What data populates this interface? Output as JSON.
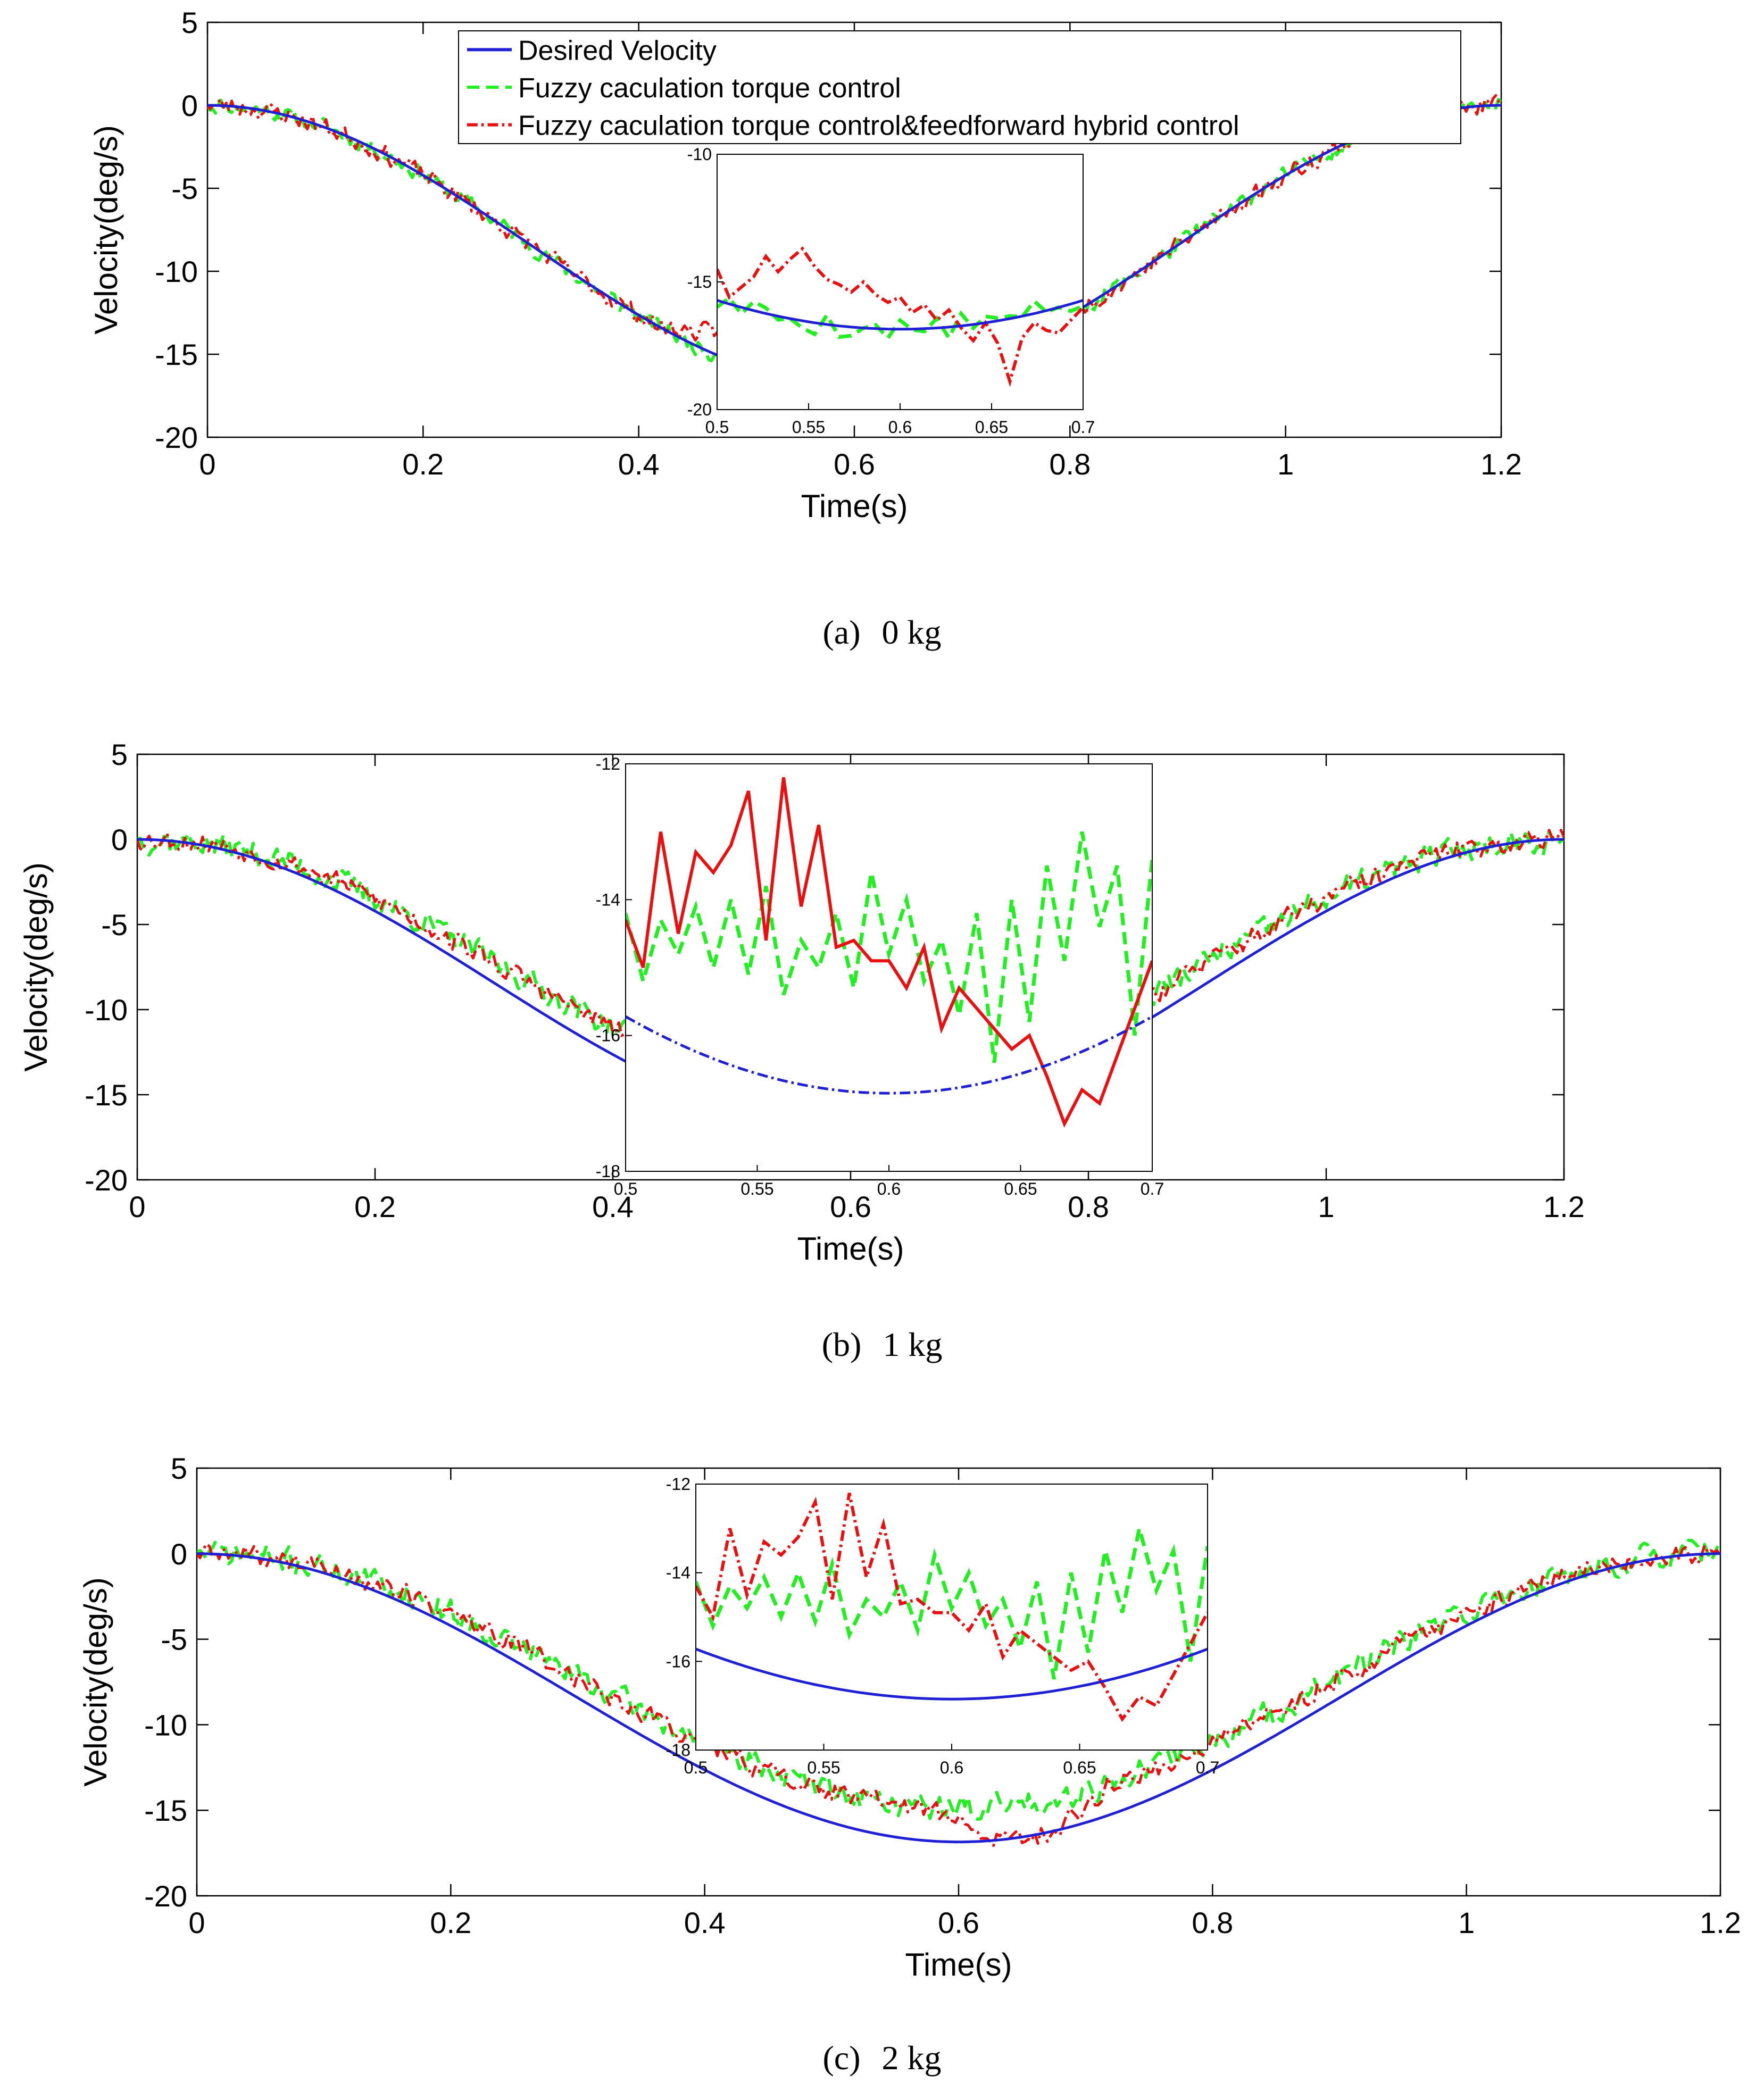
{
  "figure": {
    "panels": [
      {
        "caption_letter": "(a)",
        "caption_text": "0 kg",
        "xlabel": "Time(s)",
        "ylabel": "Velocity(deg/s)",
        "show_legend": true,
        "chart_data": {
          "type": "line",
          "xlim": [
            0,
            1.2
          ],
          "ylim": [
            -20,
            5
          ],
          "xticks": [
            0,
            0.2,
            0.4,
            0.6,
            0.8,
            1,
            1.2
          ],
          "xtick_labels": [
            "0",
            "0.2",
            "0.4",
            "0.6",
            "0.8",
            "1",
            "1.2"
          ],
          "yticks": [
            -20,
            -15,
            -10,
            -5,
            0,
            5
          ],
          "ytick_labels": [
            "-20",
            "-15",
            "-10",
            "-5",
            "0",
            "5"
          ],
          "grid": false,
          "legend_position": "top-left",
          "desired_peak": -16.85,
          "series": [
            {
              "name": "Desired Velocity",
              "color": "#1f1fd6",
              "style": "solid"
            },
            {
              "name": "Fuzzy caculation torque control",
              "color": "#22ee22",
              "style": "dashed",
              "bias": 0.0,
              "noise": 0.45,
              "seed": 11
            },
            {
              "name": "Fuzzy caculation torque control&feedforward hybrid control",
              "color": "#e81010",
              "style": "dashdot",
              "bias": 0.0,
              "noise": 0.5,
              "seed": 23,
              "bump": true
            }
          ],
          "inset": {
            "xlim": [
              0.5,
              0.7
            ],
            "ylim": [
              -20,
              -10
            ],
            "xticks": [
              0.5,
              0.55,
              0.6,
              0.65,
              0.7
            ],
            "xtick_labels": [
              "0.5",
              "0.55",
              "0.6",
              "0.65",
              "0.7"
            ],
            "yticks": [
              -20,
              -15,
              -10
            ],
            "ytick_labels": [
              "-20",
              "-15",
              "-10"
            ],
            "desired_style": "solid",
            "green_bias": 0.0,
            "red_values": [
              -14.5,
              -15.6,
              -15.2,
              -14.8,
              -14.0,
              -14.6,
              -14.1,
              -13.7,
              -14.4,
              -14.9,
              -15.1,
              -15.4,
              -15.0,
              -15.5,
              -15.8,
              -15.6,
              -16.2,
              -15.9,
              -16.5,
              -16.1,
              -16.8,
              -17.3,
              -16.6,
              -17.4,
              -18.9,
              -17.2,
              -16.6,
              -16.9,
              -17.0,
              -16.5,
              -16.0
            ]
          }
        }
      },
      {
        "caption_letter": "(b)",
        "caption_text": "1 kg",
        "xlabel": "Time(s)",
        "ylabel": "Velocity(deg/s)",
        "show_legend": false,
        "chart_data": {
          "type": "line",
          "xlim": [
            0,
            1.2
          ],
          "ylim": [
            -20,
            5
          ],
          "xticks": [
            0,
            0.2,
            0.4,
            0.6,
            0.8,
            1,
            1.2
          ],
          "xtick_labels": [
            "0",
            "0.2",
            "0.4",
            "0.6",
            "0.8",
            "1",
            "1.2"
          ],
          "yticks": [
            -20,
            -15,
            -10,
            -5,
            0,
            5
          ],
          "ytick_labels": [
            "-20",
            "-15",
            "-10",
            "-5",
            "0",
            "5"
          ],
          "grid": false,
          "desired_peak": -16.85,
          "series": [
            {
              "name": "Desired Velocity",
              "color": "#1f1fd6",
              "style": "solid"
            },
            {
              "name": "Fuzzy caculation torque control",
              "color": "#22ee22",
              "style": "dashed",
              "bias": 2.0,
              "noise": 0.7,
              "seed": 37
            },
            {
              "name": "Fuzzy caculation torque control&feedforward hybrid control",
              "color": "#e81010",
              "style": "dashdot",
              "bias": 1.9,
              "noise": 0.55,
              "seed": 53,
              "dip": true
            }
          ],
          "inset": {
            "xlim": [
              0.5,
              0.7
            ],
            "ylim": [
              -18,
              -12
            ],
            "xticks": [
              0.5,
              0.55,
              0.6,
              0.65,
              0.7
            ],
            "xtick_labels": [
              "0.5",
              "0.55",
              "0.6",
              "0.65",
              "0.7"
            ],
            "yticks": [
              -18,
              -16,
              -14,
              -12
            ],
            "ytick_labels": [
              "-18",
              "-16",
              "-14",
              "-12"
            ],
            "desired_style": "dashdot",
            "green_values": [
              -14.2,
              -15.2,
              -14.3,
              -14.8,
              -14.1,
              -15.0,
              -14.0,
              -15.1,
              -13.8,
              -15.4,
              -14.6,
              -15.0,
              -14.2,
              -15.3,
              -13.6,
              -14.8,
              -14.0,
              -15.2,
              -14.6,
              -15.7,
              -14.2,
              -16.4,
              -14.0,
              -15.8,
              -13.5,
              -14.9,
              -13.0,
              -14.4,
              -13.5,
              -16.0,
              -13.4
            ],
            "red_values": [
              -14.3,
              -15.0,
              -13.0,
              -14.5,
              -13.3,
              -13.6,
              -13.2,
              -12.4,
              -14.6,
              -12.2,
              -14.1,
              -12.9,
              -14.7,
              -14.6,
              -14.9,
              -14.9,
              -15.3,
              -14.7,
              -15.9,
              -15.3,
              -15.6,
              -15.9,
              -16.2,
              -16.0,
              -16.6,
              -17.3,
              -16.8,
              -17.0,
              -16.3,
              -15.6,
              -14.9
            ]
          }
        }
      },
      {
        "caption_letter": "(c)",
        "caption_text": "2 kg",
        "xlabel": "Time(s)",
        "ylabel": "Velocity(deg/s)",
        "show_legend": false,
        "chart_data": {
          "type": "line",
          "xlim": [
            0,
            1.2
          ],
          "ylim": [
            -20,
            5
          ],
          "xticks": [
            0,
            0.2,
            0.4,
            0.6,
            0.8,
            1,
            1.2
          ],
          "xtick_labels": [
            "0",
            "0.2",
            "0.4",
            "0.6",
            "0.8",
            "1",
            "1.2"
          ],
          "yticks": [
            -20,
            -15,
            -10,
            -5,
            0,
            5
          ],
          "ytick_labels": [
            "-20",
            "-15",
            "-10",
            "-5",
            "0",
            "5"
          ],
          "grid": false,
          "desired_peak": -16.85,
          "series": [
            {
              "name": "Desired Velocity",
              "color": "#1f1fd6",
              "style": "solid"
            },
            {
              "name": "Fuzzy caculation torque control",
              "color": "#22ee22",
              "style": "dashed",
              "bias": 2.0,
              "noise": 0.7,
              "seed": 71
            },
            {
              "name": "Fuzzy caculation torque control&feedforward hybrid control",
              "color": "#e81010",
              "style": "dashdot",
              "bias": 1.9,
              "noise": 0.55,
              "seed": 89,
              "dip": true
            }
          ],
          "inset": {
            "xlim": [
              0.5,
              0.7
            ],
            "ylim": [
              -18,
              -12
            ],
            "xticks": [
              0.5,
              0.55,
              0.6,
              0.65,
              0.7
            ],
            "xtick_labels": [
              "0.5",
              "0.55",
              "0.6",
              "0.65",
              "0.7"
            ],
            "yticks": [
              -18,
              -16,
              -14,
              -12
            ],
            "ytick_labels": [
              "-18",
              "-16",
              "-14",
              "-12"
            ],
            "desired_style": "solid",
            "green_values": [
              -14.2,
              -15.2,
              -14.3,
              -14.8,
              -14.1,
              -15.0,
              -14.0,
              -15.1,
              -13.8,
              -15.4,
              -14.6,
              -15.0,
              -14.2,
              -15.3,
              -13.6,
              -14.8,
              -14.0,
              -15.2,
              -14.6,
              -15.7,
              -14.2,
              -16.4,
              -14.0,
              -15.8,
              -13.5,
              -14.9,
              -13.0,
              -14.4,
              -13.5,
              -16.0,
              -13.4
            ],
            "red_values": [
              -14.3,
              -15.0,
              -13.0,
              -14.5,
              -13.3,
              -13.6,
              -13.2,
              -12.4,
              -14.6,
              -12.2,
              -14.1,
              -12.9,
              -14.7,
              -14.6,
              -14.9,
              -14.9,
              -15.3,
              -14.7,
              -15.9,
              -15.3,
              -15.6,
              -15.9,
              -16.2,
              -16.0,
              -16.6,
              -17.3,
              -16.8,
              -17.0,
              -16.3,
              -15.6,
              -14.9
            ]
          }
        }
      }
    ]
  }
}
